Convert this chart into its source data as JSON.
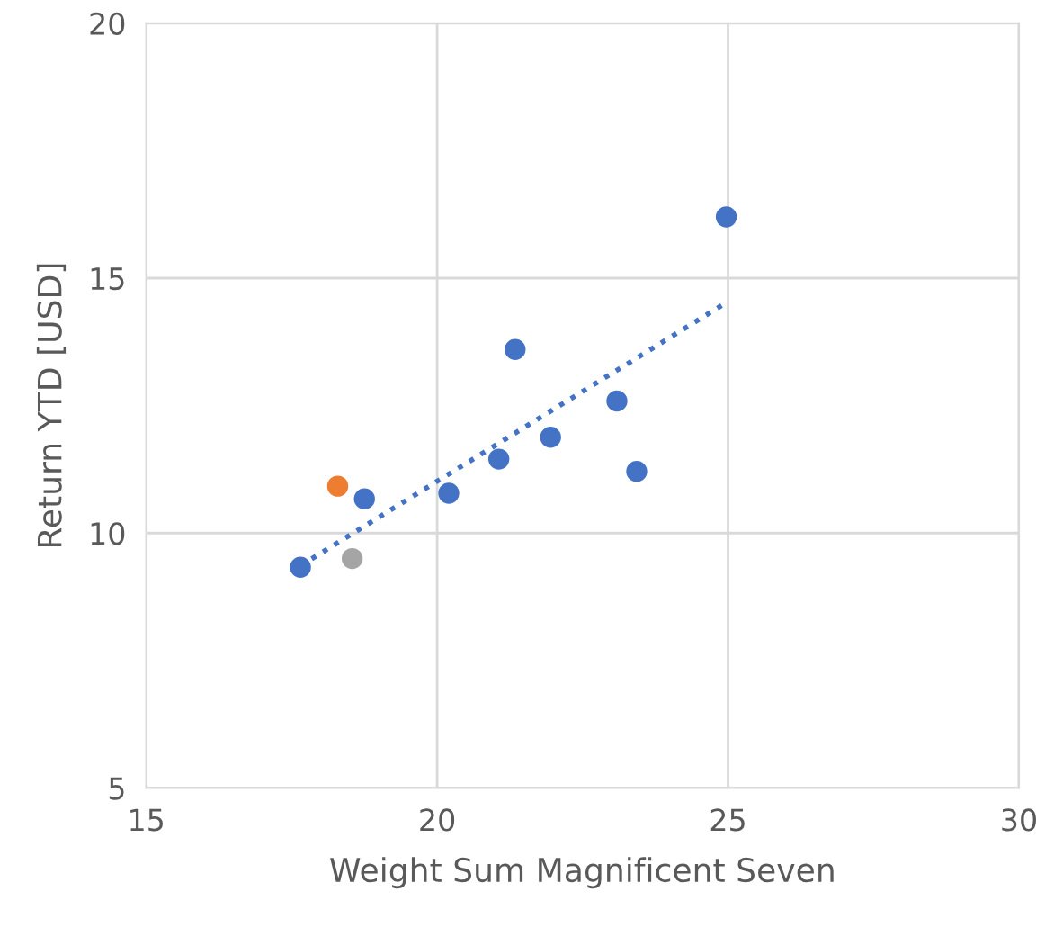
{
  "chart_data": {
    "type": "scatter",
    "xlabel": "Weight Sum Magnificent Seven",
    "ylabel": "Return YTD [USD]",
    "xlim": [
      15,
      30
    ],
    "xticks": [
      15,
      20,
      25,
      30
    ],
    "ylim": [
      5,
      20
    ],
    "yticks": [
      5,
      10,
      15,
      20
    ],
    "grid": true,
    "marker": "circle",
    "series": [
      {
        "color": "#4472c4",
        "x": [
          17.65,
          18.75,
          20.2,
          21.06,
          21.34,
          21.95,
          23.09,
          23.43,
          24.97
        ],
        "values": [
          9.33,
          10.67,
          10.78,
          11.45,
          13.6,
          11.88,
          12.59,
          11.21,
          16.2
        ]
      },
      {
        "color": "#ed7d31",
        "x": [
          18.29
        ],
        "values": [
          10.92
        ]
      },
      {
        "color": "#a5a5a5",
        "x": [
          18.54
        ],
        "values": [
          9.5
        ]
      },
      {
        "type": "line",
        "color": "#4472c4",
        "line_style": "dotted",
        "marker": "none",
        "x": [
          17.65,
          25.0
        ],
        "values": [
          9.36,
          14.54
        ]
      }
    ]
  }
}
